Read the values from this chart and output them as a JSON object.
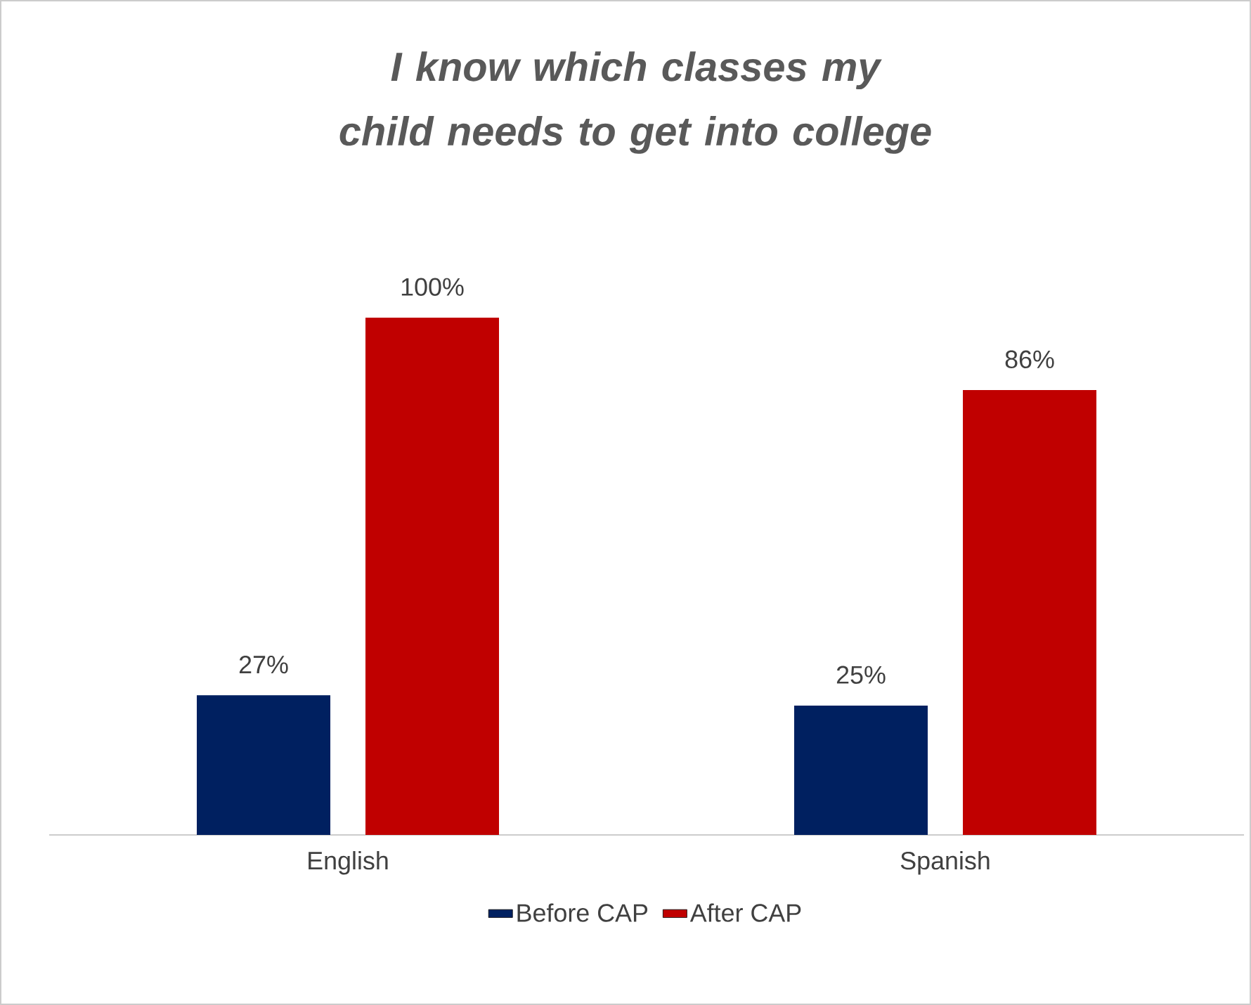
{
  "chart_data": {
    "type": "bar",
    "title": "I know which classes my child needs to get into college",
    "categories": [
      "English",
      "Spanish"
    ],
    "series": [
      {
        "name": "Before CAP",
        "color": "#002060",
        "values": [
          27,
          25
        ],
        "value_labels": [
          "27%",
          "25%"
        ]
      },
      {
        "name": "After CAP",
        "color": "#c00000",
        "values": [
          100,
          86
        ],
        "value_labels": [
          "100%",
          "86%"
        ]
      }
    ],
    "legend": "bottom"
  }
}
